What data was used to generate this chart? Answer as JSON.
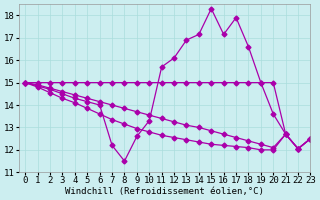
{
  "xlabel": "Windchill (Refroidissement éolien,°C)",
  "xlim": [
    -0.5,
    23
  ],
  "ylim": [
    11,
    18.5
  ],
  "yticks": [
    11,
    12,
    13,
    14,
    15,
    16,
    17,
    18
  ],
  "xticks": [
    0,
    1,
    2,
    3,
    4,
    5,
    6,
    7,
    8,
    9,
    10,
    11,
    12,
    13,
    14,
    15,
    16,
    17,
    18,
    19,
    20,
    21,
    22,
    23
  ],
  "background_color": "#cceef0",
  "grid_color": "#aadddd",
  "line_color": "#aa00aa",
  "line1_y": [
    15.0,
    14.85,
    14.7,
    14.5,
    14.3,
    14.15,
    14.0,
    12.2,
    11.5,
    12.6,
    13.3,
    15.7,
    16.1,
    16.9,
    17.15,
    18.3,
    17.15,
    17.9,
    16.6,
    15.0,
    13.6,
    12.7,
    12.05,
    12.5
  ],
  "line2_y": [
    15.0,
    15.0,
    15.0,
    15.0,
    15.0,
    15.0,
    15.0,
    15.0,
    15.0,
    15.0,
    15.0,
    15.0,
    15.0,
    15.0,
    15.0,
    15.0,
    15.0,
    15.0,
    15.0,
    15.0,
    15.0,
    12.7,
    12.05,
    12.5
  ],
  "line3_y": [
    15.0,
    14.9,
    14.75,
    14.6,
    14.45,
    14.3,
    14.15,
    14.0,
    13.85,
    13.7,
    13.55,
    13.4,
    13.25,
    13.1,
    13.0,
    12.85,
    12.7,
    12.55,
    12.4,
    12.25,
    12.1,
    12.7,
    12.05,
    12.5
  ],
  "line4_y": [
    15.0,
    14.8,
    14.55,
    14.3,
    14.1,
    13.85,
    13.6,
    13.35,
    13.15,
    12.95,
    12.8,
    12.65,
    12.55,
    12.45,
    12.35,
    12.25,
    12.2,
    12.15,
    12.1,
    12.0,
    12.0,
    12.7,
    12.05,
    12.5
  ],
  "marker": "D",
  "markersize": 2.5,
  "linewidth": 0.9,
  "font_family": "monospace",
  "tick_fontsize": 6.5,
  "label_fontsize": 6.5
}
